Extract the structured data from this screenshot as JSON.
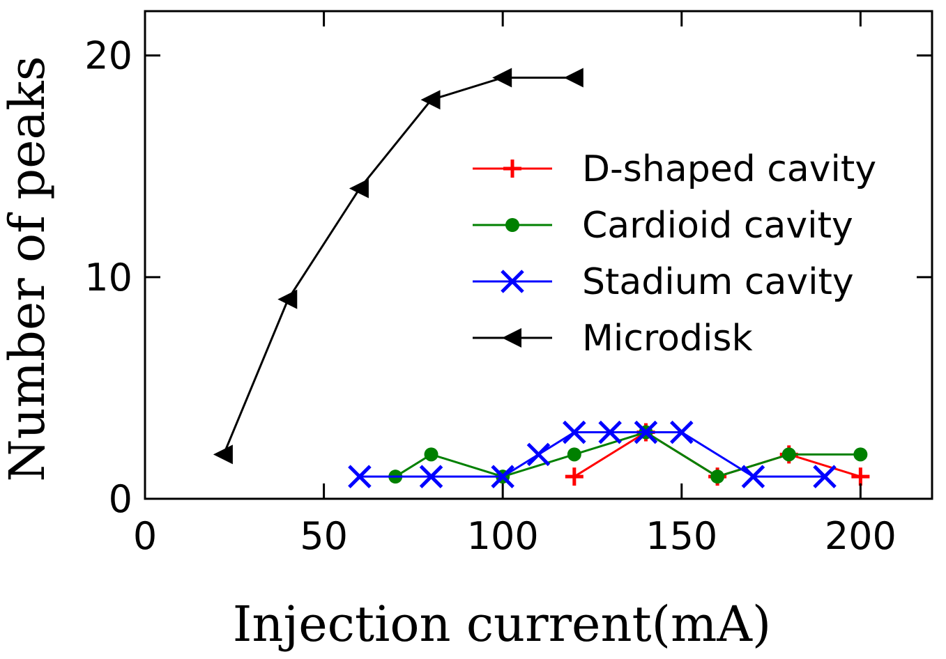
{
  "chart_data": {
    "type": "line",
    "xlabel": "Injection current(mA)",
    "ylabel": "Number of peaks",
    "xlim": [
      0,
      220
    ],
    "ylim": [
      0,
      22
    ],
    "xticks": [
      0,
      50,
      100,
      150,
      200
    ],
    "yticks": [
      0,
      10,
      20
    ],
    "xtick_labels": [
      "0",
      "50",
      "100",
      "150",
      "200"
    ],
    "ytick_labels": [
      "0",
      "10",
      "20"
    ],
    "legend_position": "center-right",
    "series": [
      {
        "name": "D-shaped cavity",
        "color": "#ff0000",
        "marker": "plus",
        "x": [
          120,
          140,
          160,
          180,
          200
        ],
        "y": [
          1,
          3,
          1,
          2,
          1
        ]
      },
      {
        "name": "Cardioid cavity",
        "color": "#008000",
        "marker": "circle",
        "x": [
          70,
          80,
          100,
          120,
          140,
          160,
          180,
          200
        ],
        "y": [
          1,
          2,
          1,
          2,
          3,
          1,
          2,
          2
        ]
      },
      {
        "name": "Stadium cavity",
        "color": "#0000ff",
        "marker": "x",
        "x": [
          60,
          80,
          100,
          110,
          120,
          130,
          140,
          150,
          170,
          190
        ],
        "y": [
          1,
          1,
          1,
          2,
          3,
          3,
          3,
          3,
          1,
          1
        ]
      },
      {
        "name": "Microdisk",
        "color": "#000000",
        "marker": "triangle-left",
        "x": [
          22,
          40,
          60,
          80,
          100,
          120
        ],
        "y": [
          2,
          9,
          14,
          18,
          19,
          19
        ]
      }
    ]
  }
}
